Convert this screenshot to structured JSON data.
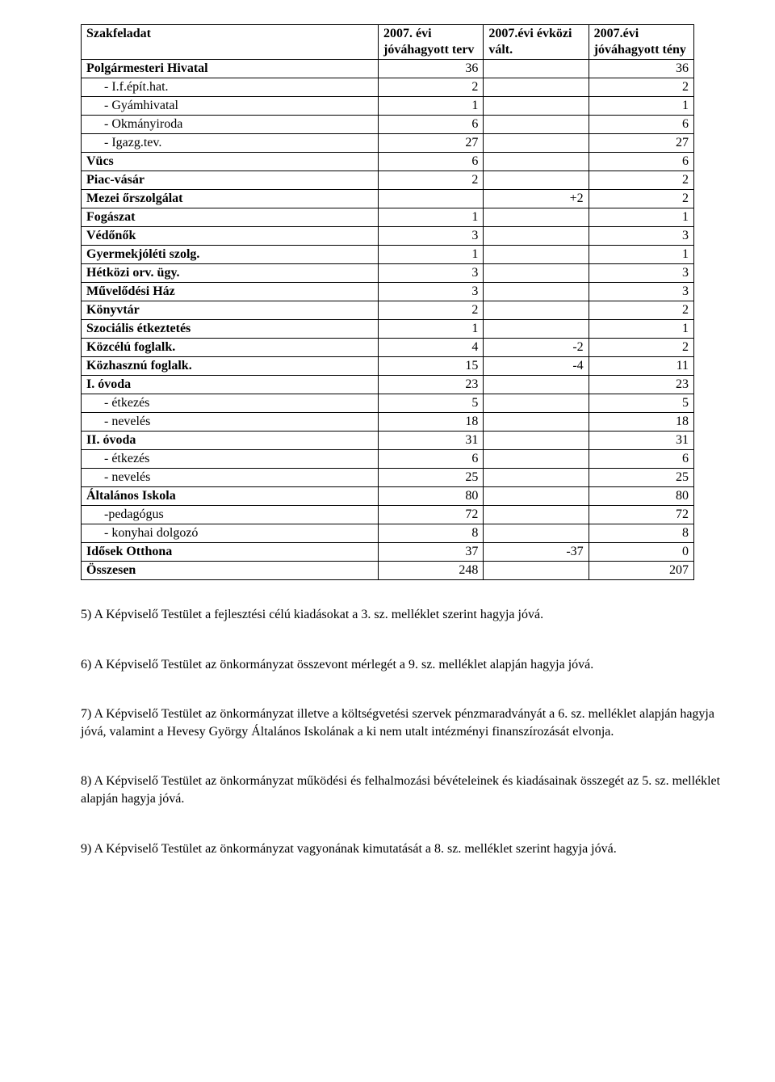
{
  "table": {
    "headers": [
      "Szakfeladat",
      "2007. évi jóváhagyott terv",
      "2007.évi évközi vált.",
      "2007.évi jóváhagyott tény"
    ],
    "rows": [
      {
        "label": "Polgármesteri Hivatal",
        "c1": "36",
        "c2": "",
        "c3": "36",
        "bold": true
      },
      {
        "label": "- I.f.épít.hat.",
        "c1": "2",
        "c2": "",
        "c3": "2",
        "indent": true
      },
      {
        "label": "- Gyámhivatal",
        "c1": "1",
        "c2": "",
        "c3": "1",
        "indent": true
      },
      {
        "label": "- Okmányiroda",
        "c1": "6",
        "c2": "",
        "c3": "6",
        "indent": true
      },
      {
        "label": "- Igazg.tev.",
        "c1": "27",
        "c2": "",
        "c3": "27",
        "indent": true
      },
      {
        "label": "Vücs",
        "c1": "6",
        "c2": "",
        "c3": "6",
        "bold": true
      },
      {
        "label": "Piac-vásár",
        "c1": "2",
        "c2": "",
        "c3": "2",
        "bold": true
      },
      {
        "label": "Mezei őrszolgálat",
        "c1": "",
        "c2": "+2",
        "c3": "2",
        "bold": true
      },
      {
        "label": "Fogászat",
        "c1": "1",
        "c2": "",
        "c3": "1",
        "bold": true
      },
      {
        "label": "Védőnők",
        "c1": "3",
        "c2": "",
        "c3": "3",
        "bold": true
      },
      {
        "label": "Gyermekjóléti szolg.",
        "c1": "1",
        "c2": "",
        "c3": "1",
        "bold": true
      },
      {
        "label": "Hétközi orv. ügy.",
        "c1": "3",
        "c2": "",
        "c3": "3",
        "bold": true
      },
      {
        "label": "Művelődési Ház",
        "c1": "3",
        "c2": "",
        "c3": "3",
        "bold": true
      },
      {
        "label": "Könyvtár",
        "c1": "2",
        "c2": "",
        "c3": "2",
        "bold": true
      },
      {
        "label": "Szociális étkeztetés",
        "c1": "1",
        "c2": "",
        "c3": "1",
        "bold": true
      },
      {
        "label": "Közcélú foglalk.",
        "c1": "4",
        "c2": "-2",
        "c3": "2",
        "bold": true
      },
      {
        "label": "Közhasznú foglalk.",
        "c1": "15",
        "c2": "-4",
        "c3": "11",
        "bold": true
      },
      {
        "label": "I. óvoda",
        "c1": "23",
        "c2": "",
        "c3": "23",
        "bold": true
      },
      {
        "label": "- étkezés",
        "c1": "5",
        "c2": "",
        "c3": "5",
        "indent": true
      },
      {
        "label": "- nevelés",
        "c1": "18",
        "c2": "",
        "c3": "18",
        "indent": true
      },
      {
        "label": "II. óvoda",
        "c1": "31",
        "c2": "",
        "c3": "31",
        "bold": true
      },
      {
        "label": "- étkezés",
        "c1": "6",
        "c2": "",
        "c3": "6",
        "indent": true
      },
      {
        "label": "- nevelés",
        "c1": "25",
        "c2": "",
        "c3": "25",
        "indent": true
      },
      {
        "label": "Általános Iskola",
        "c1": "80",
        "c2": "",
        "c3": "80",
        "bold": true
      },
      {
        "label": "-pedagógus",
        "c1": "72",
        "c2": "",
        "c3": "72",
        "indent": true
      },
      {
        "label": "- konyhai dolgozó",
        "c1": "8",
        "c2": "",
        "c3": "8",
        "indent": true
      },
      {
        "label": "Idősek Otthona",
        "c1": "37",
        "c2": "-37",
        "c3": "0",
        "bold": true
      },
      {
        "label": "Összesen",
        "c1": "248",
        "c2": "",
        "c3": "207",
        "bold": true
      }
    ]
  },
  "paras": [
    "5) A Képviselő Testület a fejlesztési célú kiadásokat a 3. sz. melléklet szerint hagyja jóvá.",
    "6) A Képviselő Testület az önkormányzat összevont mérlegét a 9. sz. melléklet alapján hagyja jóvá.",
    "7) A Képviselő Testület az önkormányzat illetve a költségvetési szervek pénzmaradványát a 6. sz. melléklet alapján hagyja jóvá, valamint a Hevesy György Általános Iskolának  a ki nem utalt intézményi finanszírozását elvonja.",
    " 8) A Képviselő Testület az önkormányzat működési és felhalmozási bévételeinek és kiadásainak összegét az 5. sz. melléklet alapján hagyja jóvá.",
    "9) A Képviselő Testület az önkormányzat vagyonának kimutatását a 8. sz. melléklet szerint hagyja jóvá."
  ]
}
